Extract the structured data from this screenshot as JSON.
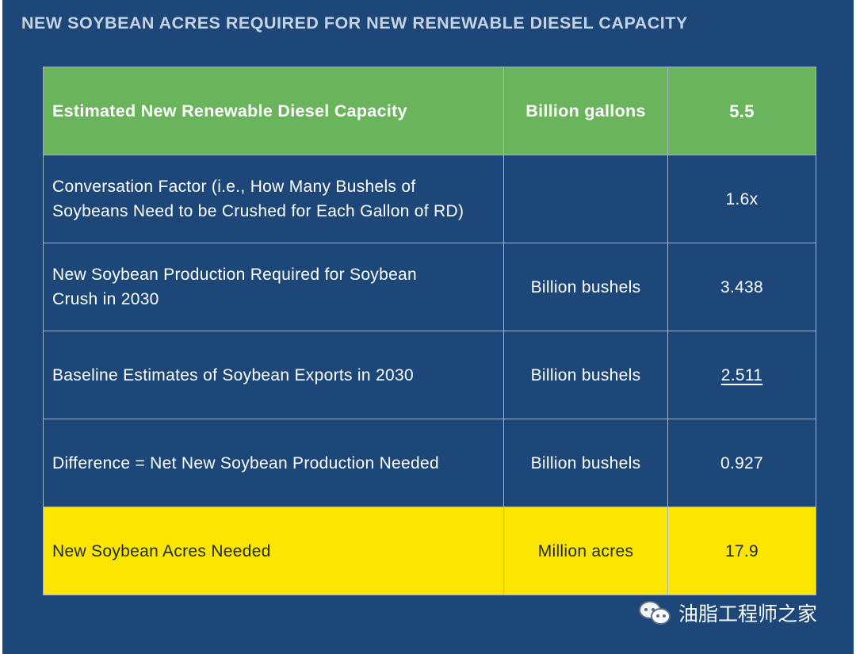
{
  "title": "NEW SOYBEAN ACRES REQUIRED FOR NEW RENEWABLE DIESEL CAPACITY",
  "table": {
    "rows": [
      {
        "label": "Estimated New Renewable Diesel Capacity",
        "unit": "Billion gallons",
        "value": "5.5"
      },
      {
        "label_line1": "Conversation Factor (i.e., How Many Bushels of",
        "label_line2": "Soybeans Need to be Crushed for Each Gallon of RD)",
        "unit": "",
        "value": "1.6x"
      },
      {
        "label_line1": "New Soybean Production Required for Soybean",
        "label_line2": "Crush in 2030",
        "unit": "Billion bushels",
        "value": "3.438"
      },
      {
        "label": "Baseline Estimates of Soybean Exports in 2030",
        "unit": "Billion bushels",
        "value": "2.511"
      },
      {
        "label": "Difference = Net New Soybean Production Needed",
        "unit": "Billion bushels",
        "value": "0.927"
      },
      {
        "label": "New Soybean Acres Needed",
        "unit": "Million acres",
        "value": "17.9"
      }
    ]
  },
  "watermark": {
    "text": "油脂工程师之家",
    "icon": "wechat-icon"
  },
  "colors": {
    "background": "#1c4778",
    "header_row": "#6ab55b",
    "final_row": "#fbe501",
    "grid": "#9fb3cc"
  }
}
